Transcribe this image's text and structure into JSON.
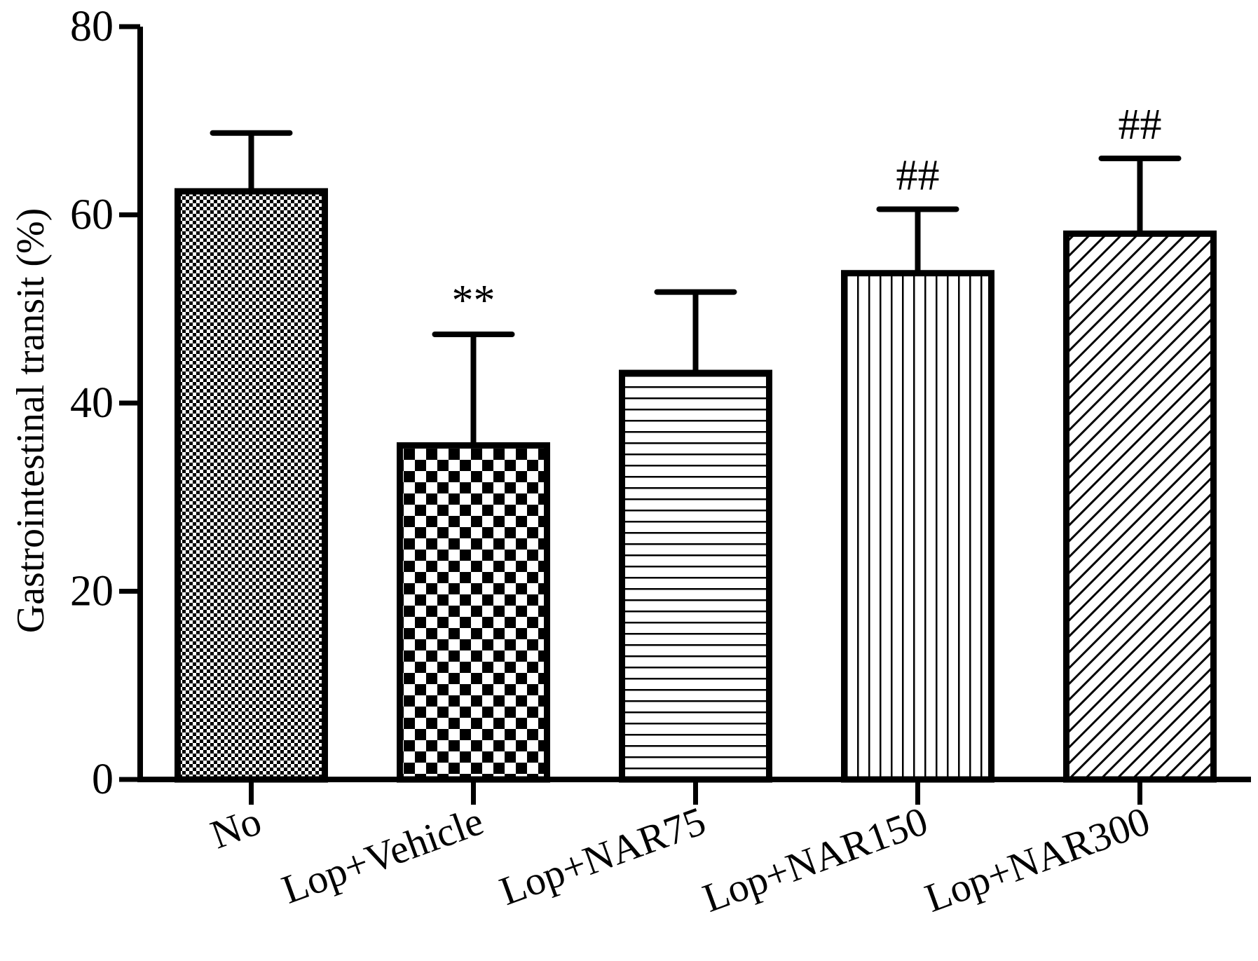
{
  "chart_data": {
    "type": "bar",
    "title": "",
    "xlabel": "",
    "ylabel": "Gastrointestinal transit (%)",
    "ylim": [
      0,
      80
    ],
    "yticks": [
      0,
      20,
      40,
      60,
      80
    ],
    "grid": false,
    "categories": [
      "No",
      "Lop+Vehicle",
      "Lop+NAR75",
      "Lop+NAR150",
      "Lop+NAR300"
    ],
    "values": [
      62.5,
      35.5,
      43.2,
      53.8,
      58.0
    ],
    "errors": [
      6.2,
      11.8,
      8.6,
      6.8,
      8.0
    ],
    "annotations": [
      "",
      "**",
      "",
      "##",
      "##"
    ],
    "patterns": [
      "fine-checker",
      "coarse-checker",
      "horizontal-lines",
      "vertical-lines",
      "diagonal-lines"
    ]
  }
}
